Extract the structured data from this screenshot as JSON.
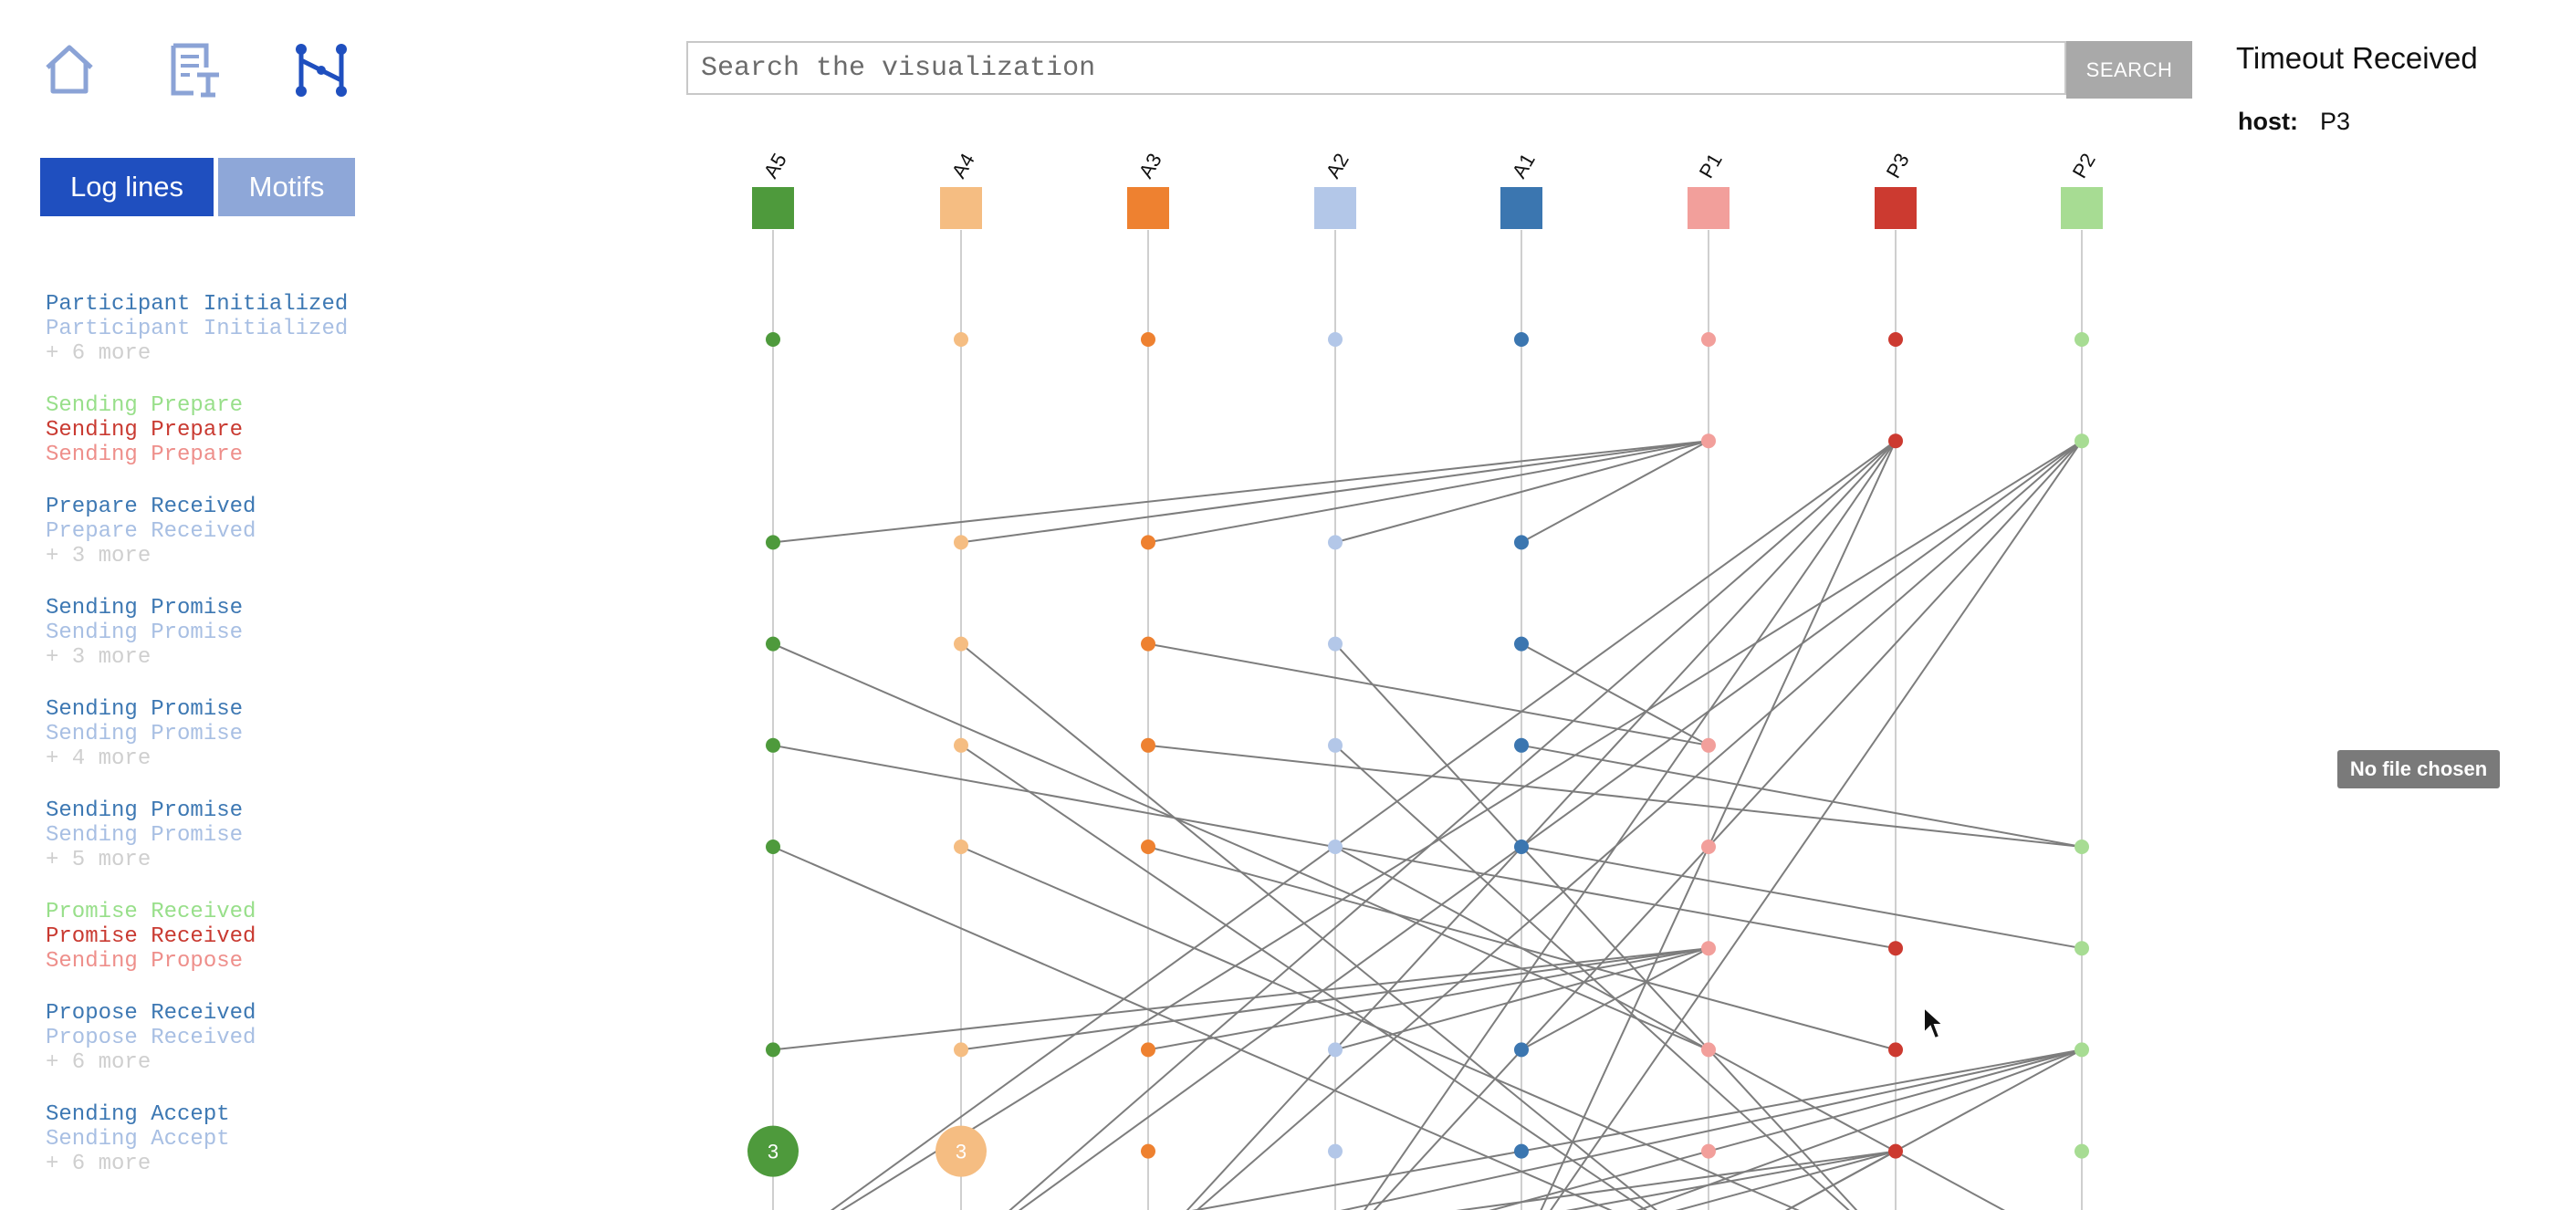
{
  "toolbar": {
    "icons": [
      {
        "name": "home-icon"
      },
      {
        "name": "log-file-icon"
      },
      {
        "name": "graph-structure-icon"
      }
    ],
    "icon_color": "#8ba3d6"
  },
  "tabs": {
    "log_lines": "Log lines",
    "motifs": "Motifs",
    "active_color": "#1f4fbf",
    "inactive_color": "#8ea7d8"
  },
  "log_groups": [
    {
      "lines": [
        {
          "text": "Participant Initialized",
          "color": "#3d78b3"
        },
        {
          "text": "Participant Initialized",
          "color": "#a8bfe3"
        },
        {
          "text": "+ 6 more",
          "color": "#cfcfcf"
        }
      ]
    },
    {
      "lines": [
        {
          "text": "Sending Prepare",
          "color": "#98df8a"
        },
        {
          "text": "Sending Prepare",
          "color": "#c93a31"
        },
        {
          "text": "Sending Prepare",
          "color": "#ee8f8b"
        }
      ]
    },
    {
      "lines": [
        {
          "text": "Prepare Received",
          "color": "#3d78b3"
        },
        {
          "text": "Prepare Received",
          "color": "#a8bfe3"
        },
        {
          "text": "+ 3 more",
          "color": "#cfcfcf"
        }
      ]
    },
    {
      "lines": [
        {
          "text": "Sending Promise",
          "color": "#3d78b3"
        },
        {
          "text": "Sending Promise",
          "color": "#a8bfe3"
        },
        {
          "text": "+ 3 more",
          "color": "#cfcfcf"
        }
      ]
    },
    {
      "lines": [
        {
          "text": "Sending Promise",
          "color": "#3d78b3"
        },
        {
          "text": "Sending Promise",
          "color": "#a8bfe3"
        },
        {
          "text": "+ 4 more",
          "color": "#cfcfcf"
        }
      ]
    },
    {
      "lines": [
        {
          "text": "Sending Promise",
          "color": "#3d78b3"
        },
        {
          "text": "Sending Promise",
          "color": "#a8bfe3"
        },
        {
          "text": "+ 5 more",
          "color": "#cfcfcf"
        }
      ]
    },
    {
      "lines": [
        {
          "text": "Promise Received",
          "color": "#98df8a"
        },
        {
          "text": "Promise Received",
          "color": "#c93a31"
        },
        {
          "text": "Sending Propose",
          "color": "#ee8f8b"
        }
      ]
    },
    {
      "lines": [
        {
          "text": "Propose Received",
          "color": "#3d78b3"
        },
        {
          "text": "Propose Received",
          "color": "#a8bfe3"
        },
        {
          "text": "+ 6 more",
          "color": "#cfcfcf"
        }
      ]
    },
    {
      "lines": [
        {
          "text": "Sending Accept",
          "color": "#3d78b3"
        },
        {
          "text": "Sending Accept",
          "color": "#a8bfe3"
        },
        {
          "text": "+ 6 more",
          "color": "#cfcfcf"
        }
      ]
    }
  ],
  "search": {
    "placeholder": "Search the visualization",
    "button_label": "SEARCH"
  },
  "selected": {
    "title": "Timeout Received",
    "host_label": "host:",
    "host_value": "P3"
  },
  "file_input": {
    "label": "No file chosen"
  },
  "hosts": [
    {
      "name": "A5",
      "color": "#4e9a3c"
    },
    {
      "name": "A4",
      "color": "#f5bd82"
    },
    {
      "name": "A3",
      "color": "#ee8130"
    },
    {
      "name": "A2",
      "color": "#b3c7e8"
    },
    {
      "name": "A1",
      "color": "#3b76b0"
    },
    {
      "name": "P1",
      "color": "#f29f9b"
    },
    {
      "name": "P3",
      "color": "#cc3a30"
    },
    {
      "name": "P2",
      "color": "#a7dc93"
    }
  ],
  "collapsed_nodes": [
    {
      "host": 0,
      "row": 8,
      "count": "3"
    },
    {
      "host": 1,
      "row": 8,
      "count": "3"
    }
  ],
  "events": [
    [
      0,
      0
    ],
    [
      1,
      0
    ],
    [
      2,
      0
    ],
    [
      3,
      0
    ],
    [
      4,
      0
    ],
    [
      5,
      0
    ],
    [
      6,
      0
    ],
    [
      7,
      0
    ],
    [
      5,
      1
    ],
    [
      6,
      1
    ],
    [
      7,
      1
    ],
    [
      0,
      2
    ],
    [
      1,
      2
    ],
    [
      2,
      2
    ],
    [
      3,
      2
    ],
    [
      4,
      2
    ],
    [
      0,
      3
    ],
    [
      1,
      3
    ],
    [
      2,
      3
    ],
    [
      3,
      3
    ],
    [
      4,
      3
    ],
    [
      0,
      4
    ],
    [
      1,
      4
    ],
    [
      2,
      4
    ],
    [
      3,
      4
    ],
    [
      4,
      4
    ],
    [
      5,
      4
    ],
    [
      0,
      5
    ],
    [
      1,
      5
    ],
    [
      2,
      5
    ],
    [
      3,
      5
    ],
    [
      4,
      5
    ],
    [
      5,
      5
    ],
    [
      7,
      5
    ],
    [
      5,
      6
    ],
    [
      6,
      6
    ],
    [
      7,
      6
    ],
    [
      0,
      7
    ],
    [
      1,
      7
    ],
    [
      2,
      7
    ],
    [
      3,
      7
    ],
    [
      4,
      7
    ],
    [
      5,
      7
    ],
    [
      6,
      7
    ],
    [
      7,
      7
    ],
    [
      2,
      8
    ],
    [
      3,
      8
    ],
    [
      4,
      8
    ],
    [
      5,
      8
    ],
    [
      6,
      8
    ],
    [
      7,
      8
    ]
  ],
  "messages": [
    [
      5,
      1,
      0,
      2
    ],
    [
      5,
      1,
      1,
      2
    ],
    [
      5,
      1,
      2,
      2
    ],
    [
      5,
      1,
      3,
      2
    ],
    [
      5,
      1,
      4,
      2
    ],
    [
      6,
      1,
      0,
      9
    ],
    [
      6,
      1,
      1,
      9
    ],
    [
      6,
      1,
      2,
      9
    ],
    [
      6,
      1,
      3,
      9
    ],
    [
      6,
      1,
      4,
      9
    ],
    [
      7,
      1,
      0,
      9
    ],
    [
      7,
      1,
      1,
      9
    ],
    [
      7,
      1,
      2,
      9
    ],
    [
      7,
      1,
      3,
      9
    ],
    [
      7,
      1,
      4,
      9
    ],
    [
      0,
      3,
      5,
      7
    ],
    [
      1,
      3,
      5,
      9
    ],
    [
      2,
      3,
      5,
      4
    ],
    [
      3,
      3,
      6,
      9
    ],
    [
      4,
      3,
      5,
      4
    ],
    [
      0,
      4,
      6,
      6
    ],
    [
      1,
      4,
      5,
      9
    ],
    [
      2,
      4,
      7,
      5
    ],
    [
      3,
      4,
      6,
      9
    ],
    [
      4,
      4,
      7,
      5
    ],
    [
      0,
      5,
      5,
      9
    ],
    [
      1,
      5,
      6,
      9
    ],
    [
      2,
      5,
      6,
      7
    ],
    [
      3,
      5,
      7,
      9
    ],
    [
      4,
      5,
      7,
      6
    ],
    [
      5,
      6,
      0,
      7
    ],
    [
      5,
      6,
      1,
      7
    ],
    [
      5,
      6,
      2,
      7
    ],
    [
      5,
      6,
      3,
      7
    ],
    [
      5,
      6,
      4,
      7
    ],
    [
      7,
      7,
      5,
      9
    ],
    [
      7,
      7,
      4,
      9
    ],
    [
      7,
      7,
      3,
      9
    ],
    [
      7,
      7,
      2,
      9
    ],
    [
      7,
      7,
      1,
      9
    ],
    [
      6,
      8,
      5,
      9
    ],
    [
      6,
      8,
      4,
      9
    ],
    [
      6,
      8,
      3,
      9
    ],
    [
      6,
      8,
      2,
      9
    ]
  ]
}
